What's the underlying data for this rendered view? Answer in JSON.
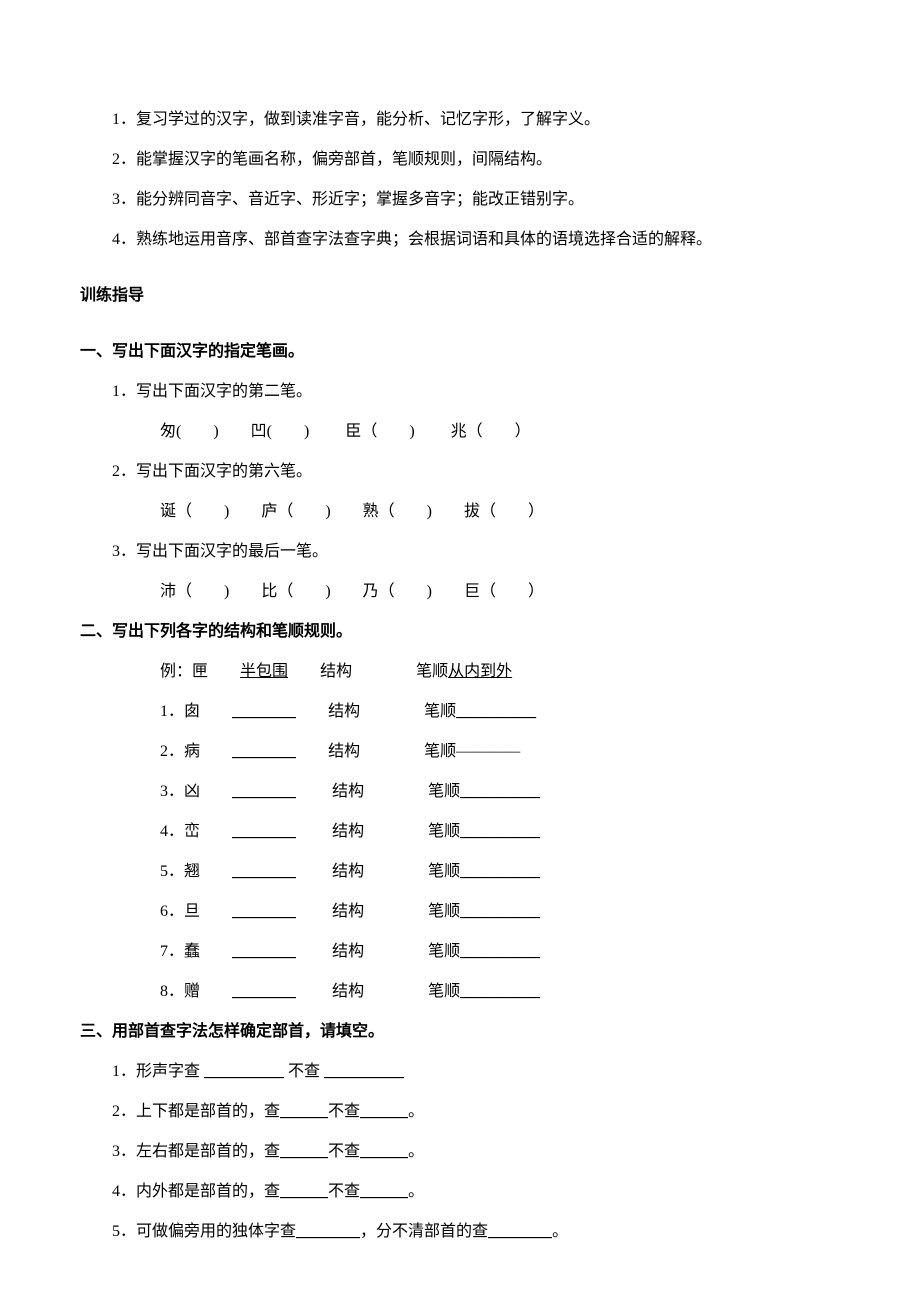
{
  "intro": [
    "1．复习学过的汉字，做到读准字音，能分析、记忆字形，了解字义。",
    "2．能掌握汉字的笔画名称，偏旁部首，笔顺规则，间隔结构。",
    "3．能分辨同音字、音近字、形近字；掌握多音字；能改正错别字。",
    "4．熟练地运用音序、部首查字法查字典；会根据词语和具体的语境选择合适的解释。"
  ],
  "guide_label": "训练指导",
  "s1": {
    "title": "一、写出下面汉字的指定笔画。",
    "q1": "1．写出下面汉字的第二笔。",
    "r1": "匆(　　)　　凹(　　)　　 臣（　　)　　 兆（　　）",
    "q2": "2．写出下面汉字的第六笔。",
    "r2": "诞（　　)　　庐（　　)　　熟（　　)　　拔（　　）",
    "q3": "3．写出下面汉字的最后一笔。",
    "r3": "沛（　　)　　比（　　)　　乃（　　)　　巨（　　）"
  },
  "s2": {
    "title": "二、写出下列各字的结构和笔顺规则。",
    "example": {
      "label": "例：匣",
      "struct": "半包围",
      "mid": "结构",
      "order_label": "笔顺",
      "order": "从内到外"
    },
    "rows": [
      {
        "n": "1．囱",
        "mid": "结构",
        "order": "笔顺"
      },
      {
        "n": "2．病",
        "mid": "结构",
        "order": "笔顺————"
      },
      {
        "n": "3．凶",
        "mid": "结构",
        "order": "笔顺"
      },
      {
        "n": "4．峦",
        "mid": "结构",
        "order": "笔顺"
      },
      {
        "n": "5．翘",
        "mid": "结构",
        "order": "笔顺"
      },
      {
        "n": "6．旦",
        "mid": "结构",
        "order": "笔顺"
      },
      {
        "n": "7．蠢",
        "mid": "结构",
        "order": "笔顺"
      },
      {
        "n": "8．赠",
        "mid": "结构",
        "order": "笔顺"
      }
    ],
    "blank": "＿＿＿＿",
    "long_blank": "＿＿＿＿＿"
  },
  "s3": {
    "title": "三、用部首查字法怎样确定部首，请填空。",
    "q1_a": "1．形声字查 ",
    "q1_b": " 不查 ",
    "q2_a": "2．上下都是部首的，查",
    "q2_b": "不查",
    "q2_c": "。",
    "q3_a": "3．左右都是部首的，查",
    "q3_b": "不查",
    "q3_c": "。",
    "q4_a": "4．内外都是部首的，查",
    "q4_b": "不查",
    "q4_c": "。",
    "q5_a": "5．可做偏旁用的独体字查",
    "q5_b": "，分不清部首的查",
    "q5_c": "。",
    "blank_s": "＿＿＿",
    "blank_m": "＿＿＿＿",
    "blank_l": "＿＿＿＿＿"
  }
}
